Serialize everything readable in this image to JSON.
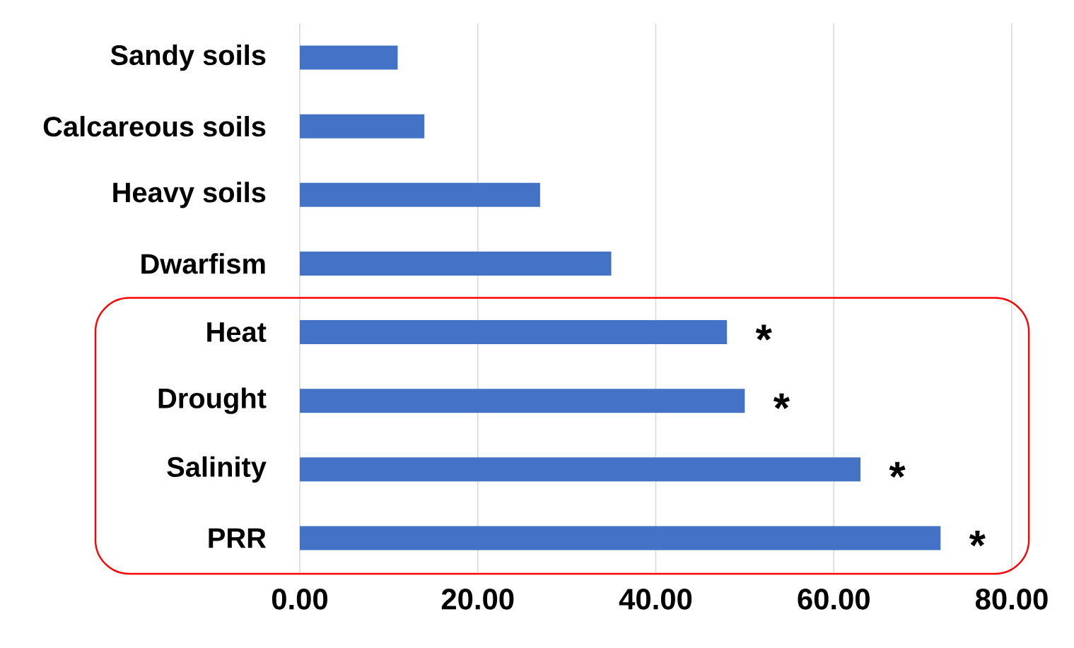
{
  "chart_data": {
    "type": "bar",
    "orientation": "horizontal",
    "categories": [
      "Sandy soils",
      "Calcareous soils",
      "Heavy soils",
      "Dwarfism",
      "Heat",
      "Drought",
      "Salinity",
      "PRR"
    ],
    "values": [
      11,
      14,
      27,
      35,
      48,
      50,
      63,
      72
    ],
    "color": "#4472c4",
    "xlim": [
      0,
      80
    ],
    "xticks": [
      {
        "value": 0,
        "label": "0.00"
      },
      {
        "value": 20,
        "label": "20.00"
      },
      {
        "value": 40,
        "label": "40.00"
      },
      {
        "value": 60,
        "label": "60.00"
      },
      {
        "value": 80,
        "label": "80.00"
      }
    ],
    "grid": "x",
    "annotations": [
      {
        "text": "*",
        "x": 48,
        "y": "Heat"
      },
      {
        "text": "*",
        "x": 50,
        "y": "Drought"
      },
      {
        "text": "*",
        "x": 63,
        "y": "Salinity"
      },
      {
        "text": "*",
        "x": 72,
        "y": "PRR"
      }
    ]
  }
}
